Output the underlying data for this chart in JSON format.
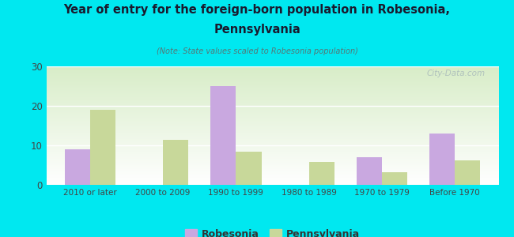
{
  "title_line1": "Year of entry for the foreign-born population in Robesonia,",
  "title_line2": "Pennsylvania",
  "subtitle": "(Note: State values scaled to Robesonia population)",
  "categories": [
    "2010 or later",
    "2000 to 2009",
    "1990 to 1999",
    "1980 to 1989",
    "1970 to 1979",
    "Before 1970"
  ],
  "robesonia": [
    9,
    0,
    25,
    0,
    7,
    13
  ],
  "pennsylvania": [
    19,
    11.5,
    8.5,
    5.8,
    3.3,
    6.2
  ],
  "robesonia_color": "#c9a8e0",
  "pennsylvania_color": "#c8d89a",
  "background_color": "#00e8f0",
  "ylim": [
    0,
    30
  ],
  "yticks": [
    0,
    10,
    20,
    30
  ],
  "bar_width": 0.35,
  "watermark": "City-Data.com",
  "legend_robesonia": "Robesonia",
  "legend_pennsylvania": "Pennsylvania",
  "title_color": "#1a1a2e",
  "subtitle_color": "#557777",
  "tick_color": "#444444"
}
